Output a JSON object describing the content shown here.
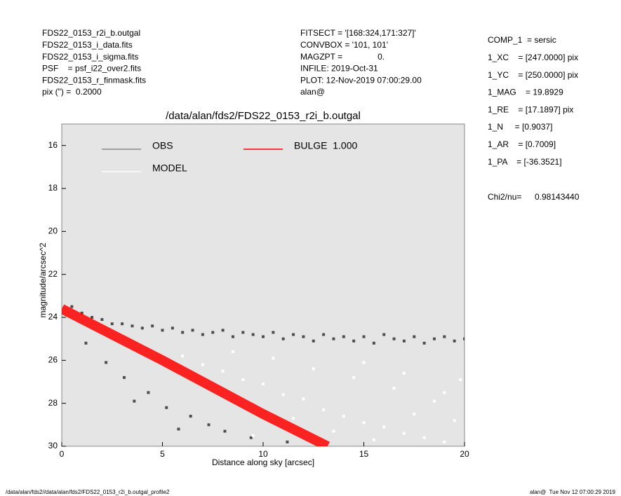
{
  "header": {
    "left": [
      "FDS22_0153_r2i_b.outgal",
      "FDS22_0153_i_data.fits",
      "FDS22_0153_i_sigma.fits",
      "PSF    = psf_i22_over2.fits",
      "FDS22_0153_r_finmask.fits",
      "pix (\") =  0.2000"
    ],
    "middle": [
      "FITSECT = '[168:324,171:327]'",
      "CONVBOX = '101, 101'",
      "MAGZPT =               0.",
      "INFILE: 2019-Oct-31",
      "PLOT: 12-Nov-2019 07:00:29.00",
      "alan@"
    ],
    "right": [
      "COMP_1  = sersic",
      "1_XC    = [247.0000] pix",
      "1_YC    = [250.0000] pix",
      "1_MAG    = 19.8929",
      "1_RE    = [17.1897] pix",
      "1_N     = [0.9037]",
      "1_AR    = [0.7009]",
      "1_PA    = [-36.3521]"
    ],
    "chi2_label": "Chi2/nu=",
    "chi2_value": "0.98143440"
  },
  "footer": {
    "left": "/data/alan/fds2//data/alan/fds2/FDS22_0153_r2i_b.outgal_profile2",
    "right": "alan@  Tue Nov 12 07:00:29 2019"
  },
  "chart_data": {
    "type": "scatter",
    "title": "/data/alan/fds2/FDS22_0153_r2i_b.outgal",
    "x_label": "Distance along sky [arcsec]",
    "y_label": "magnitude/arcsec^2",
    "xlim": [
      0,
      20
    ],
    "xticks": [
      0,
      5,
      10,
      15,
      20
    ],
    "ylim": [
      15,
      30
    ],
    "yticks": [
      16,
      18,
      20,
      22,
      24,
      26,
      28,
      30
    ],
    "y_inverted": true,
    "background": "#e5e5e5",
    "series": [
      {
        "name": "OBS",
        "color": "#4d4d4d",
        "x": [
          0.5,
          1,
          1.5,
          2,
          2.5,
          3,
          3.5,
          4,
          4.5,
          5,
          5.5,
          6,
          6.5,
          7,
          7.5,
          8,
          8.5,
          9,
          9.5,
          10,
          10.5,
          11,
          11.5,
          12,
          12.5,
          13,
          13.5,
          14,
          14.5,
          15,
          15.5,
          16,
          16.5,
          17,
          17.5,
          18,
          18.5,
          19,
          19.5,
          20,
          1.2,
          2.2,
          3.1,
          4.3,
          5.2,
          6.4,
          7.3,
          8.1,
          9.4,
          11.2,
          3.6,
          5.8
        ],
        "values": [
          23.5,
          23.8,
          24.0,
          24.1,
          24.3,
          24.3,
          24.4,
          24.5,
          24.4,
          24.6,
          24.5,
          24.7,
          24.6,
          24.8,
          24.7,
          24.6,
          24.9,
          24.7,
          24.8,
          24.9,
          24.7,
          25.0,
          24.8,
          24.9,
          25.1,
          24.8,
          25.0,
          24.9,
          25.1,
          24.9,
          25.2,
          24.8,
          25.0,
          25.1,
          24.9,
          25.2,
          25.0,
          24.9,
          25.1,
          25.0,
          25.2,
          26.1,
          26.8,
          27.5,
          28.2,
          28.6,
          29.0,
          29.3,
          29.6,
          29.8,
          27.9,
          29.2
        ]
      },
      {
        "name": "MODEL",
        "color": "#ffffff",
        "x": [
          6,
          7,
          8,
          9,
          10,
          11,
          12,
          13,
          14,
          15,
          16,
          17,
          18,
          19,
          19.5,
          8.5,
          10.5,
          12.5,
          14.5,
          16.5,
          18.5,
          11.5,
          13.5,
          15.5,
          17.5,
          19.8,
          9.5,
          15,
          17,
          19
        ],
        "values": [
          25.8,
          26.2,
          26.5,
          26.9,
          27.1,
          27.6,
          27.8,
          28.3,
          28.6,
          28.9,
          29.1,
          29.4,
          29.6,
          29.8,
          28.8,
          25.6,
          25.9,
          26.4,
          26.8,
          27.3,
          27.9,
          28.7,
          29.3,
          29.7,
          28.5,
          26.9,
          29.5,
          26.1,
          26.6,
          27.5
        ]
      },
      {
        "name": "BULGE  1.000",
        "color": "#ff0000",
        "line": true,
        "x": [
          0,
          5,
          10,
          13.2
        ],
        "values": [
          23.6,
          26.0,
          28.5,
          30
        ]
      }
    ]
  }
}
